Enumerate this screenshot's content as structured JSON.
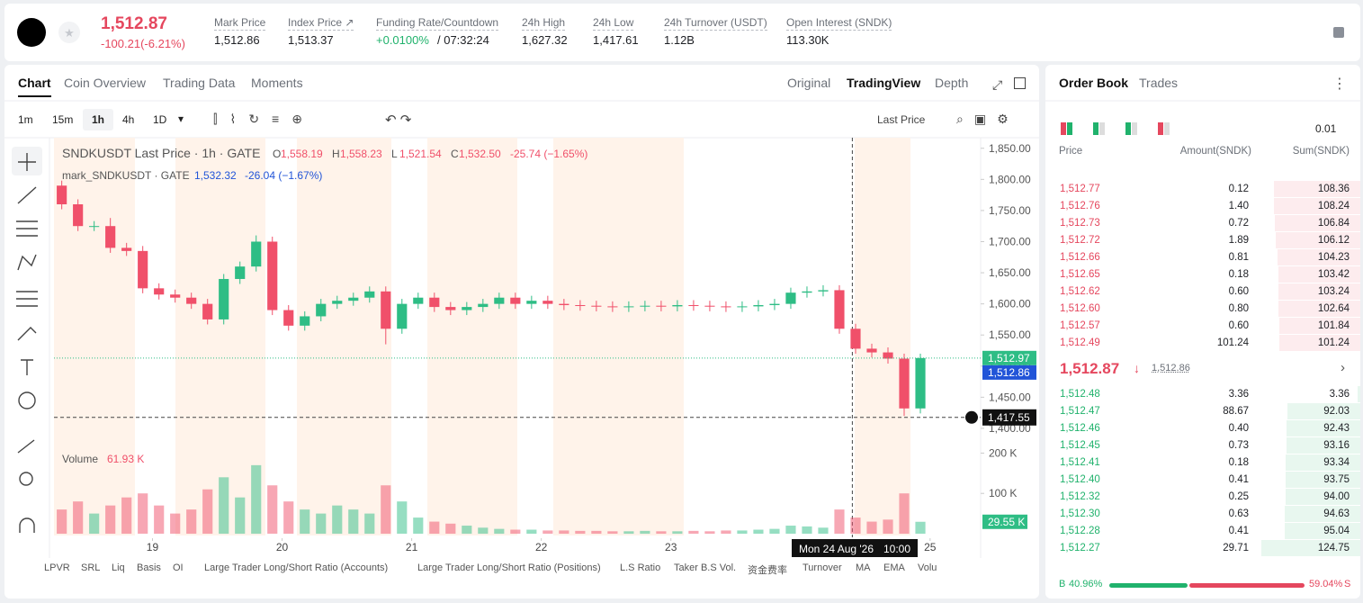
{
  "header": {
    "price": "1,512.87",
    "change": "-100.21(-6.21%)",
    "stats": [
      {
        "label": "Mark Price",
        "value": "1,512.86"
      },
      {
        "label": "Index Price ↗",
        "value": "1,513.37"
      },
      {
        "label": "Funding Rate/Countdown",
        "value": "+0.0100%",
        "extra": "/ 07:32:24"
      },
      {
        "label": "24h High",
        "value": "1,627.32"
      },
      {
        "label": "24h Low",
        "value": "1,417.61"
      },
      {
        "label": "24h Turnover (USDT)",
        "value": "1.12B"
      },
      {
        "label": "Open Interest (SNDK)",
        "value": "113.30K"
      }
    ]
  },
  "tabs": [
    "Chart",
    "Coin Overview",
    "Trading Data",
    "Moments"
  ],
  "views": [
    "Original",
    "TradingView",
    "Depth"
  ],
  "intervals": [
    "1m",
    "15m",
    "1h",
    "4h",
    "1D"
  ],
  "price_source": "Last Price",
  "chart_data": {
    "type": "candlestick",
    "title": "SNDKUSDT Last Price · 1h · GATE",
    "ohlc_legend": [
      {
        "label": "O",
        "value": "1,558.19"
      },
      {
        "label": "H",
        "value": "1,558.23"
      },
      {
        "label": "L",
        "value": "1,521.54"
      },
      {
        "label": "C",
        "value": "1,532.50"
      }
    ],
    "legend_change": "-25.74 (−1.65%)",
    "mark_legend": {
      "name": "mark_SNDKUSDT · GATE",
      "value": "1,532.32",
      "change": "-26.04 (−1.67%)"
    },
    "volume_legend": {
      "name": "Volume",
      "value": "61.93 K"
    },
    "x": [
      18.3,
      18.425,
      18.55,
      18.675,
      18.8,
      18.925,
      19.05,
      19.175,
      19.3,
      19.425,
      19.55,
      19.675,
      19.8,
      19.925,
      20.05,
      20.175,
      20.3,
      20.425,
      20.55,
      20.675,
      20.8,
      20.925,
      21.05,
      21.175,
      21.3,
      21.425,
      21.55,
      21.675,
      21.8,
      21.925,
      22.05,
      22.175,
      22.3,
      22.425,
      22.55,
      22.675,
      22.8,
      22.925,
      23.05,
      23.175,
      23.3,
      23.425,
      23.55,
      23.675,
      23.8,
      23.925,
      24.05,
      24.175,
      24.3,
      24.425,
      24.55,
      24.675,
      24.8,
      24.925
    ],
    "open": [
      1790,
      1760,
      1725,
      1725,
      1690,
      1685,
      1625,
      1615,
      1610,
      1600,
      1575,
      1640,
      1660,
      1700,
      1590,
      1565,
      1580,
      1600,
      1605,
      1610,
      1620,
      1560,
      1600,
      1610,
      1595,
      1590,
      1595,
      1600,
      1610,
      1600,
      1605,
      1600,
      1598,
      1597,
      1596,
      1595,
      1596,
      1597,
      1596,
      1598,
      1597,
      1596,
      1595,
      1596,
      1598,
      1600,
      1618,
      1620,
      1622,
      1560,
      1528,
      1522,
      1512,
      1432
    ],
    "high": [
      1798,
      1768,
      1733,
      1738,
      1698,
      1693,
      1633,
      1623,
      1618,
      1608,
      1648,
      1668,
      1710,
      1708,
      1598,
      1588,
      1608,
      1613,
      1618,
      1628,
      1628,
      1608,
      1618,
      1618,
      1603,
      1603,
      1608,
      1618,
      1618,
      1613,
      1613,
      1608,
      1606,
      1605,
      1604,
      1604,
      1605,
      1605,
      1606,
      1606,
      1605,
      1604,
      1604,
      1606,
      1608,
      1626,
      1628,
      1630,
      1630,
      1568,
      1536,
      1530,
      1520,
      1520
    ],
    "low": [
      1752,
      1717,
      1717,
      1682,
      1677,
      1617,
      1607,
      1602,
      1592,
      1567,
      1567,
      1632,
      1652,
      1582,
      1557,
      1557,
      1572,
      1592,
      1597,
      1602,
      1535,
      1552,
      1592,
      1587,
      1582,
      1582,
      1587,
      1592,
      1592,
      1592,
      1592,
      1590,
      1589,
      1588,
      1587,
      1587,
      1588,
      1588,
      1588,
      1589,
      1588,
      1587,
      1587,
      1588,
      1590,
      1592,
      1610,
      1612,
      1552,
      1520,
      1514,
      1504,
      1420,
      1424
    ],
    "close": [
      1760,
      1725,
      1725,
      1690,
      1685,
      1625,
      1615,
      1610,
      1600,
      1575,
      1640,
      1660,
      1700,
      1590,
      1565,
      1580,
      1600,
      1605,
      1610,
      1620,
      1560,
      1600,
      1610,
      1595,
      1590,
      1595,
      1600,
      1610,
      1600,
      1605,
      1600,
      1598,
      1597,
      1596,
      1595,
      1596,
      1597,
      1596,
      1598,
      1597,
      1596,
      1595,
      1596,
      1598,
      1600,
      1618,
      1620,
      1622,
      1560,
      1528,
      1522,
      1512,
      1432,
      1512.97
    ],
    "volume": [
      60000,
      80000,
      50000,
      70000,
      90000,
      100000,
      70000,
      50000,
      60000,
      110000,
      140000,
      90000,
      170000,
      120000,
      80000,
      60000,
      50000,
      70000,
      60000,
      50000,
      120000,
      80000,
      40000,
      30000,
      25000,
      20000,
      15000,
      12000,
      10000,
      10000,
      8000,
      8000,
      7000,
      7000,
      6000,
      6000,
      7000,
      6000,
      6000,
      7000,
      6000,
      8000,
      8000,
      10000,
      12000,
      20000,
      18000,
      15000,
      60000,
      40000,
      30000,
      35000,
      100000,
      29550
    ],
    "up_color": "#2ebd85",
    "down_color": "#f0506a",
    "xlim": [
      18.24,
      25.39
    ],
    "xticks": [
      19,
      20,
      21,
      22,
      23,
      25
    ],
    "ylim": [
      1384,
      1867
    ],
    "yticks": [
      {
        "value": 1850,
        "label": "1,850.00"
      },
      {
        "value": 1800,
        "label": "1,800.00"
      },
      {
        "value": 1750,
        "label": "1,750.00"
      },
      {
        "value": 1700,
        "label": "1,700.00"
      },
      {
        "value": 1650,
        "label": "1,650.00"
      },
      {
        "value": 1600,
        "label": "1,600.00"
      },
      {
        "value": 1550,
        "label": "1,550.00"
      },
      {
        "value": 1500,
        "label": "1,500.00"
      },
      {
        "value": 1450,
        "label": "1,450.00"
      },
      {
        "value": 1400,
        "label": "1,400.00"
      }
    ],
    "vlim": [
      0,
      230000
    ],
    "vticks": [
      {
        "value": 100000,
        "label": "100 K"
      },
      {
        "value": 200000,
        "label": "200 K"
      }
    ],
    "last_price": {
      "value": 1512.97,
      "label": "1,512.97"
    },
    "mark_price": {
      "value": 1512.86,
      "label": "1,512.86"
    },
    "last_volume": {
      "value": 29550,
      "label": "29.55 K"
    },
    "crosshair": {
      "value": 1417.55,
      "label": "1,417.55",
      "x": 24.4,
      "time": "Mon 24 Aug '26",
      "hour": "10:00"
    }
  },
  "indicators": [
    "LPVR",
    "SRL",
    "Liq",
    "Basis",
    "OI",
    "Large Trader Long/Short Ratio (Accounts)",
    "Large Trader Long/Short Ratio (Positions)",
    "L.S Ratio",
    "Taker B.S Vol.",
    "资金费率",
    "Turnover",
    "MA",
    "EMA",
    "Volu"
  ],
  "order_book": {
    "tabs": [
      "Order Book",
      "Trades"
    ],
    "precision": "0.01",
    "columns": [
      "Price",
      "Amount(SNDK)",
      "Sum(SNDK)"
    ],
    "asks": [
      [
        "1,512.77",
        "0.12",
        "108.36"
      ],
      [
        "1,512.76",
        "1.40",
        "108.24"
      ],
      [
        "1,512.73",
        "0.72",
        "106.84"
      ],
      [
        "1,512.72",
        "1.89",
        "106.12"
      ],
      [
        "1,512.66",
        "0.81",
        "104.23"
      ],
      [
        "1,512.65",
        "0.18",
        "103.42"
      ],
      [
        "1,512.62",
        "0.60",
        "103.24"
      ],
      [
        "1,512.60",
        "0.80",
        "102.64"
      ],
      [
        "1,512.57",
        "0.60",
        "101.84"
      ],
      [
        "1,512.49",
        "101.24",
        "101.24"
      ]
    ],
    "last": "1,512.87",
    "mark": "1,512.86",
    "bids": [
      [
        "1,512.48",
        "3.36",
        "3.36"
      ],
      [
        "1,512.47",
        "88.67",
        "92.03"
      ],
      [
        "1,512.46",
        "0.40",
        "92.43"
      ],
      [
        "1,512.45",
        "0.73",
        "93.16"
      ],
      [
        "1,512.41",
        "0.18",
        "93.34"
      ],
      [
        "1,512.40",
        "0.41",
        "93.75"
      ],
      [
        "1,512.32",
        "0.25",
        "94.00"
      ],
      [
        "1,512.30",
        "0.63",
        "94.63"
      ],
      [
        "1,512.28",
        "0.41",
        "95.04"
      ],
      [
        "1,512.27",
        "29.71",
        "124.75"
      ]
    ],
    "ratio": {
      "labels": [
        "B",
        "S"
      ],
      "values": [
        40.96,
        59.04
      ],
      "value_labels": [
        "40.96%",
        "59.04%"
      ]
    }
  }
}
